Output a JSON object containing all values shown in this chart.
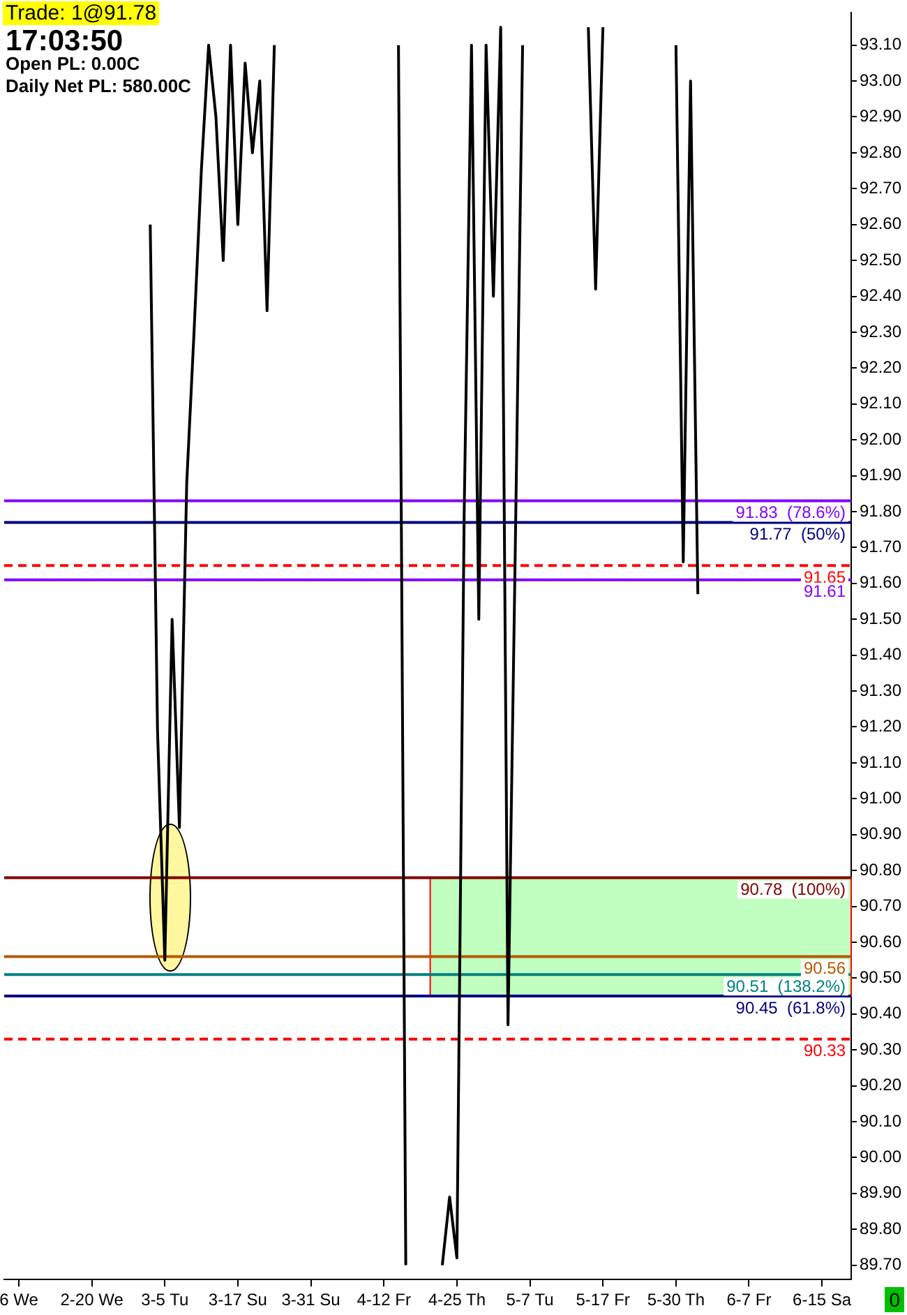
{
  "chart_data": {
    "type": "line",
    "categories": [
      null,
      null,
      "6 We",
      null,
      null,
      null,
      null,
      null,
      null,
      null,
      null,
      null,
      "2-20 We",
      null,
      null,
      null,
      null,
      null,
      null,
      null,
      null,
      null,
      "3-5 Tu",
      null,
      null,
      null,
      null,
      null,
      null,
      null,
      null,
      null,
      "3-17 Su",
      null,
      null,
      null,
      null,
      null,
      null,
      null,
      null,
      null,
      "3-31 Su",
      null,
      null,
      null,
      null,
      null,
      null,
      null,
      null,
      null,
      "4-12 Fr",
      null,
      null,
      null,
      null,
      null,
      null,
      null,
      null,
      null,
      "4-25 Th",
      null,
      null,
      null,
      null,
      null,
      null,
      null,
      null,
      null,
      "5-7 Tu",
      null,
      null,
      null,
      null,
      null,
      null,
      null,
      null,
      null,
      "5-17 Fr",
      null,
      null,
      null,
      null,
      null,
      null,
      null,
      null,
      null,
      "5-30 Th",
      null,
      null,
      null,
      null,
      null,
      null,
      null,
      null,
      null,
      "6-7 Fr",
      null,
      null,
      null,
      null,
      null,
      null,
      null,
      null,
      null,
      "6-15 Sa",
      null,
      null,
      null,
      null
    ],
    "series": [
      {
        "color": "#000000",
        "values": [
          null,
          null,
          null,
          null,
          null,
          null,
          null,
          null,
          null,
          null,
          null,
          null,
          null,
          null,
          null,
          null,
          null,
          null,
          null,
          null,
          92.6,
          91.19,
          90.55,
          91.5,
          90.92,
          91.88,
          92.3,
          92.75,
          93.1,
          92.9,
          92.5,
          93.1,
          92.6,
          93.05,
          92.8,
          93.0,
          92.36,
          93.1,
          null,
          null,
          null,
          null,
          null,
          null,
          null,
          null,
          null,
          null,
          null,
          null,
          null,
          null,
          null,
          null,
          93.1,
          89.7,
          null,
          null,
          null,
          null,
          89.7,
          89.89,
          89.72,
          91.8,
          93.1,
          91.5,
          93.1,
          92.4,
          93.15,
          90.37,
          91.7,
          93.1,
          null,
          null,
          null,
          null,
          null,
          null,
          null,
          null,
          93.15,
          92.42,
          93.15,
          null,
          null,
          null,
          null,
          null,
          null,
          null,
          null,
          null,
          93.1,
          91.66,
          93.0,
          91.57,
          null,
          null,
          null,
          null,
          null,
          null,
          null,
          null,
          null,
          null,
          null,
          null,
          null,
          null,
          null,
          null,
          null,
          null,
          null,
          null,
          null
        ]
      }
    ],
    "ylim": [
      89.66,
      93.19
    ],
    "yticks": [
      {
        "value": 89.7,
        "label": "89.70"
      },
      {
        "value": 89.8,
        "label": "89.80"
      },
      {
        "value": 89.9,
        "label": "89.90"
      },
      {
        "value": 90.0,
        "label": "90.00"
      },
      {
        "value": 90.1,
        "label": "90.10"
      },
      {
        "value": 90.2,
        "label": "90.20"
      },
      {
        "value": 90.3,
        "label": "90.30"
      },
      {
        "value": 90.4,
        "label": "90.40"
      },
      {
        "value": 90.5,
        "label": "90.50"
      },
      {
        "value": 90.6,
        "label": "90.60"
      },
      {
        "value": 90.7,
        "label": "90.70"
      },
      {
        "value": 90.8,
        "label": "90.80"
      },
      {
        "value": 90.9,
        "label": "90.90"
      },
      {
        "value": 91.0,
        "label": "91.00"
      },
      {
        "value": 91.1,
        "label": "91.10"
      },
      {
        "value": 91.2,
        "label": "91.20"
      },
      {
        "value": 91.3,
        "label": "91.30"
      },
      {
        "value": 91.4,
        "label": "91.40"
      },
      {
        "value": 91.5,
        "label": "91.50"
      },
      {
        "value": 91.6,
        "label": "91.60"
      },
      {
        "value": 91.7,
        "label": "91.70"
      },
      {
        "value": 91.8,
        "label": "91.80"
      },
      {
        "value": 91.9,
        "label": "91.90"
      },
      {
        "value": 92.0,
        "label": "92.00"
      },
      {
        "value": 92.1,
        "label": "92.10"
      },
      {
        "value": 92.2,
        "label": "92.20"
      },
      {
        "value": 92.3,
        "label": "92.30"
      },
      {
        "value": 92.4,
        "label": "92.40"
      },
      {
        "value": 92.5,
        "label": "92.50"
      },
      {
        "value": 92.6,
        "label": "92.60"
      },
      {
        "value": 92.7,
        "label": "92.70"
      },
      {
        "value": 92.8,
        "label": "92.80"
      },
      {
        "value": 92.9,
        "label": "92.90"
      },
      {
        "value": 93.0,
        "label": "93.00"
      },
      {
        "value": 93.1,
        "label": "93.10"
      }
    ],
    "ref_lines": [
      {
        "axis": "y",
        "value": 91.65,
        "label": "91.65",
        "color": "#ff0000",
        "line_style": "dashed"
      },
      {
        "axis": "y",
        "value": 91.61,
        "label": "91.61",
        "color": "#8000ff",
        "line_style": "solid"
      },
      {
        "axis": "y",
        "value": 90.56,
        "label": "90.56",
        "color": "#b35900",
        "line_style": "solid"
      },
      {
        "axis": "y",
        "value": 90.33,
        "label": "90.33",
        "color": "#ff0000",
        "line_style": "dashed"
      },
      {
        "axis": "y",
        "value": 91.83,
        "label": "91.83  (78.6%)",
        "color": "#8000ff",
        "line_style": "solid"
      },
      {
        "axis": "y",
        "value": 91.77,
        "label": "91.77  (50%)",
        "color": "#000080",
        "line_style": "solid"
      },
      {
        "axis": "y",
        "value": 90.78,
        "label": "90.78  (100%)",
        "color": "#800000",
        "line_style": "solid"
      },
      {
        "axis": "y",
        "value": 90.51,
        "label": "90.51  (138.2%)",
        "color": "#008080",
        "line_style": "solid"
      },
      {
        "axis": "y",
        "value": 90.45,
        "label": "90.45  (61.8%)",
        "color": "#000080",
        "line_style": "solid"
      }
    ],
    "bands": [
      {
        "axis": "y",
        "from": 90.45,
        "to": 90.78,
        "color": "#c0ffc0"
      }
    ],
    "annotations": [
      "Trade: 1@91.78",
      "17:03:50",
      "Open PL: 0.00C",
      "Daily Net PL: 580.00C",
      "0"
    ],
    "grid": false,
    "legend": false,
    "marker": "none",
    "line_style": "solid"
  }
}
